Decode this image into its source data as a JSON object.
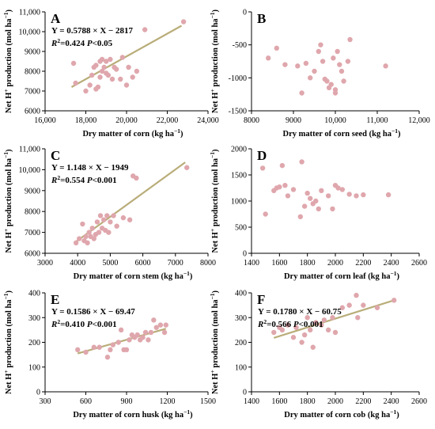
{
  "colors": {
    "point": "#dfa7ad",
    "fit": "#b9ad79",
    "axis": "#000000"
  },
  "chart_data": [
    {
      "type": "scatter",
      "letter": "A",
      "xlabel": "Dry matter of corn (kg ha⁻¹)",
      "ylabel": "Net H⁺ production (mol ha⁻¹)",
      "xlim": [
        16000,
        24000
      ],
      "ylim": [
        6000,
        11000
      ],
      "xticks": [
        16000,
        18000,
        20000,
        22000,
        24000
      ],
      "yticks": [
        6000,
        7000,
        8000,
        9000,
        10000,
        11000
      ],
      "xtick_labels": [
        "16,000",
        "18,000",
        "20,000",
        "22,000",
        "24,000"
      ],
      "ytick_labels": [
        "6000",
        "7000",
        "8000",
        "9000",
        "10,000",
        "11,000"
      ],
      "equation": "Y = 0.5788 × X − 2817",
      "r2": "=0.424",
      "p": "<0.05",
      "fit": {
        "x": [
          17300,
          22700
        ],
        "y": [
          7200,
          10300
        ]
      },
      "points": {
        "x": [
          17400,
          17500,
          18000,
          18200,
          18300,
          18400,
          18500,
          18500,
          18600,
          18700,
          18700,
          18800,
          18800,
          18900,
          19000,
          19000,
          19100,
          19200,
          19300,
          19400,
          19500,
          19700,
          19800,
          20000,
          20100,
          20300,
          20500,
          20900,
          22800
        ],
        "y": [
          8400,
          7400,
          7000,
          7300,
          7800,
          8200,
          8300,
          7100,
          7200,
          8500,
          7700,
          8600,
          8000,
          8200,
          8500,
          7900,
          7800,
          8600,
          7600,
          8200,
          8100,
          7600,
          8700,
          7300,
          8200,
          7700,
          8000,
          10100,
          10500
        ]
      }
    },
    {
      "type": "scatter",
      "letter": "B",
      "xlabel": "Dry matter of corn seed (kg ha⁻¹)",
      "ylabel": "Net H⁺ production (mol ha⁻¹)",
      "xlim": [
        8000,
        12000
      ],
      "ylim": [
        -1500,
        0
      ],
      "xticks": [
        8000,
        9000,
        10000,
        11000,
        12000
      ],
      "yticks": [
        -1500,
        -1000,
        -500,
        0
      ],
      "xtick_labels": [
        "8000",
        "9000",
        "10,000",
        "11,000",
        "12,000"
      ],
      "ytick_labels": [
        "-1500",
        "-1000",
        "-500",
        "0"
      ],
      "points": {
        "x": [
          8400,
          8600,
          8800,
          9100,
          9200,
          9300,
          9400,
          9500,
          9600,
          9650,
          9700,
          9750,
          9800,
          9850,
          9900,
          9950,
          10000,
          10000,
          10050,
          10100,
          10150,
          10200,
          10300,
          10350,
          11200
        ],
        "y": [
          -700,
          -550,
          -800,
          -820,
          -1230,
          -780,
          -1000,
          -900,
          -600,
          -500,
          -750,
          -1020,
          -1050,
          -1150,
          -1100,
          -700,
          -1180,
          -1230,
          -600,
          -800,
          -900,
          -1050,
          -750,
          -420,
          -820
        ]
      }
    },
    {
      "type": "scatter",
      "letter": "C",
      "xlabel": "Dry matter of corn stem (kg ha⁻¹)",
      "ylabel": "Net H⁺ production (mol ha⁻¹)",
      "xlim": [
        3000,
        8000
      ],
      "ylim": [
        6000,
        11000
      ],
      "xticks": [
        3000,
        4000,
        5000,
        6000,
        7000,
        8000
      ],
      "yticks": [
        6000,
        7000,
        8000,
        9000,
        10000,
        11000
      ],
      "xtick_labels": [
        "3000",
        "4000",
        "5000",
        "6000",
        "7000",
        "8000"
      ],
      "ytick_labels": [
        "6000",
        "7000",
        "8000",
        "9000",
        "10,000",
        "11,000"
      ],
      "equation": "Y = 1.148 × X − 1949",
      "r2": "=0.554",
      "p": "<0.001",
      "fit": {
        "x": [
          3900,
          7300
        ],
        "y": [
          6500,
          10350
        ]
      },
      "points": {
        "x": [
          3950,
          4050,
          4150,
          4200,
          4250,
          4300,
          4350,
          4400,
          4450,
          4500,
          4550,
          4600,
          4650,
          4700,
          4750,
          4800,
          4850,
          4900,
          4950,
          5000,
          5100,
          5200,
          5400,
          5600,
          5700,
          5800,
          7350
        ],
        "y": [
          6500,
          6700,
          7400,
          6600,
          6800,
          6500,
          7000,
          6800,
          7200,
          6700,
          6900,
          7500,
          7000,
          7800,
          7200,
          7600,
          7100,
          7800,
          7000,
          7500,
          7800,
          7300,
          7700,
          7600,
          9700,
          9600,
          10100
        ]
      }
    },
    {
      "type": "scatter",
      "letter": "D",
      "xlabel": "Dry matter of corn leaf (kg ha⁻¹)",
      "ylabel": "Net H⁺ production (mol ha⁻¹)",
      "xlim": [
        1400,
        2600
      ],
      "ylim": [
        0,
        2000
      ],
      "xticks": [
        1400,
        1600,
        1800,
        2000,
        2200,
        2400,
        2600
      ],
      "yticks": [
        0,
        500,
        1000,
        1500,
        2000
      ],
      "xtick_labels": [
        "1400",
        "1600",
        "1800",
        "2000",
        "2200",
        "2400",
        "2600"
      ],
      "ytick_labels": [
        "0",
        "500",
        "1000",
        "1500",
        "2000"
      ],
      "points": {
        "x": [
          1480,
          1500,
          1560,
          1580,
          1600,
          1620,
          1640,
          1660,
          1700,
          1750,
          1760,
          1780,
          1800,
          1820,
          1840,
          1860,
          1880,
          1900,
          1950,
          1980,
          2000,
          2020,
          2050,
          2100,
          2150,
          2200,
          2380
        ],
        "y": [
          1630,
          750,
          1200,
          1250,
          1270,
          1680,
          1300,
          1100,
          1220,
          700,
          1750,
          900,
          1150,
          1050,
          950,
          1000,
          850,
          1200,
          1100,
          850,
          1300,
          1250,
          1220,
          1130,
          1100,
          1120,
          1120
        ]
      }
    },
    {
      "type": "scatter",
      "letter": "E",
      "xlabel": "Dry matter of corn husk (kg ha⁻¹)",
      "ylabel": "Net H⁺ production (mol ha⁻¹)",
      "xlim": [
        300,
        1500
      ],
      "ylim": [
        0,
        400
      ],
      "xticks": [
        300,
        600,
        900,
        1200,
        1500
      ],
      "yticks": [
        0,
        100,
        200,
        300,
        400
      ],
      "xtick_labels": [
        "300",
        "600",
        "900",
        "1200",
        "1500"
      ],
      "ytick_labels": [
        "0",
        "100",
        "200",
        "300",
        "400"
      ],
      "equation": "Y = 0.1586 × X − 69.47",
      "r2": "=0.410",
      "p": "<0.001",
      "fit": {
        "x": [
          540,
          1190
        ],
        "y": [
          155,
          255
        ]
      },
      "points": {
        "x": [
          540,
          600,
          660,
          700,
          760,
          780,
          800,
          840,
          860,
          880,
          900,
          920,
          940,
          960,
          980,
          1000,
          1020,
          1040,
          1060,
          1080,
          1100,
          1120,
          1150,
          1180,
          1190
        ],
        "y": [
          170,
          160,
          180,
          180,
          140,
          170,
          190,
          200,
          250,
          170,
          170,
          210,
          230,
          220,
          230,
          210,
          220,
          240,
          210,
          240,
          290,
          260,
          270,
          240,
          270
        ]
      }
    },
    {
      "type": "scatter",
      "letter": "F",
      "xlabel": "Dry matter of corn cob (kg ha⁻¹)",
      "ylabel": "Net H⁺ production (mol ha⁻¹)",
      "xlim": [
        1400,
        2600
      ],
      "ylim": [
        0,
        400
      ],
      "xticks": [
        1400,
        1600,
        1800,
        2000,
        2200,
        2400,
        2600
      ],
      "yticks": [
        0,
        100,
        200,
        300,
        400
      ],
      "xtick_labels": [
        "1400",
        "1600",
        "1800",
        "2000",
        "2200",
        "2400",
        "2600"
      ],
      "ytick_labels": [
        "0",
        "100",
        "200",
        "300",
        "400"
      ],
      "equation": "Y = 0.1780 × X − 60.75",
      "r2": "=0.566",
      "p": "<0.001",
      "fit": {
        "x": [
          1560,
          2420
        ],
        "y": [
          218,
          370
        ]
      },
      "points": {
        "x": [
          1560,
          1600,
          1620,
          1660,
          1700,
          1720,
          1760,
          1780,
          1800,
          1820,
          1840,
          1860,
          1900,
          1920,
          1950,
          1980,
          2000,
          2050,
          2100,
          2150,
          2160,
          2200,
          2300,
          2420
        ],
        "y": [
          240,
          260,
          250,
          270,
          220,
          260,
          200,
          230,
          300,
          250,
          180,
          280,
          270,
          290,
          250,
          300,
          240,
          340,
          350,
          390,
          300,
          350,
          340,
          370
        ]
      }
    }
  ]
}
